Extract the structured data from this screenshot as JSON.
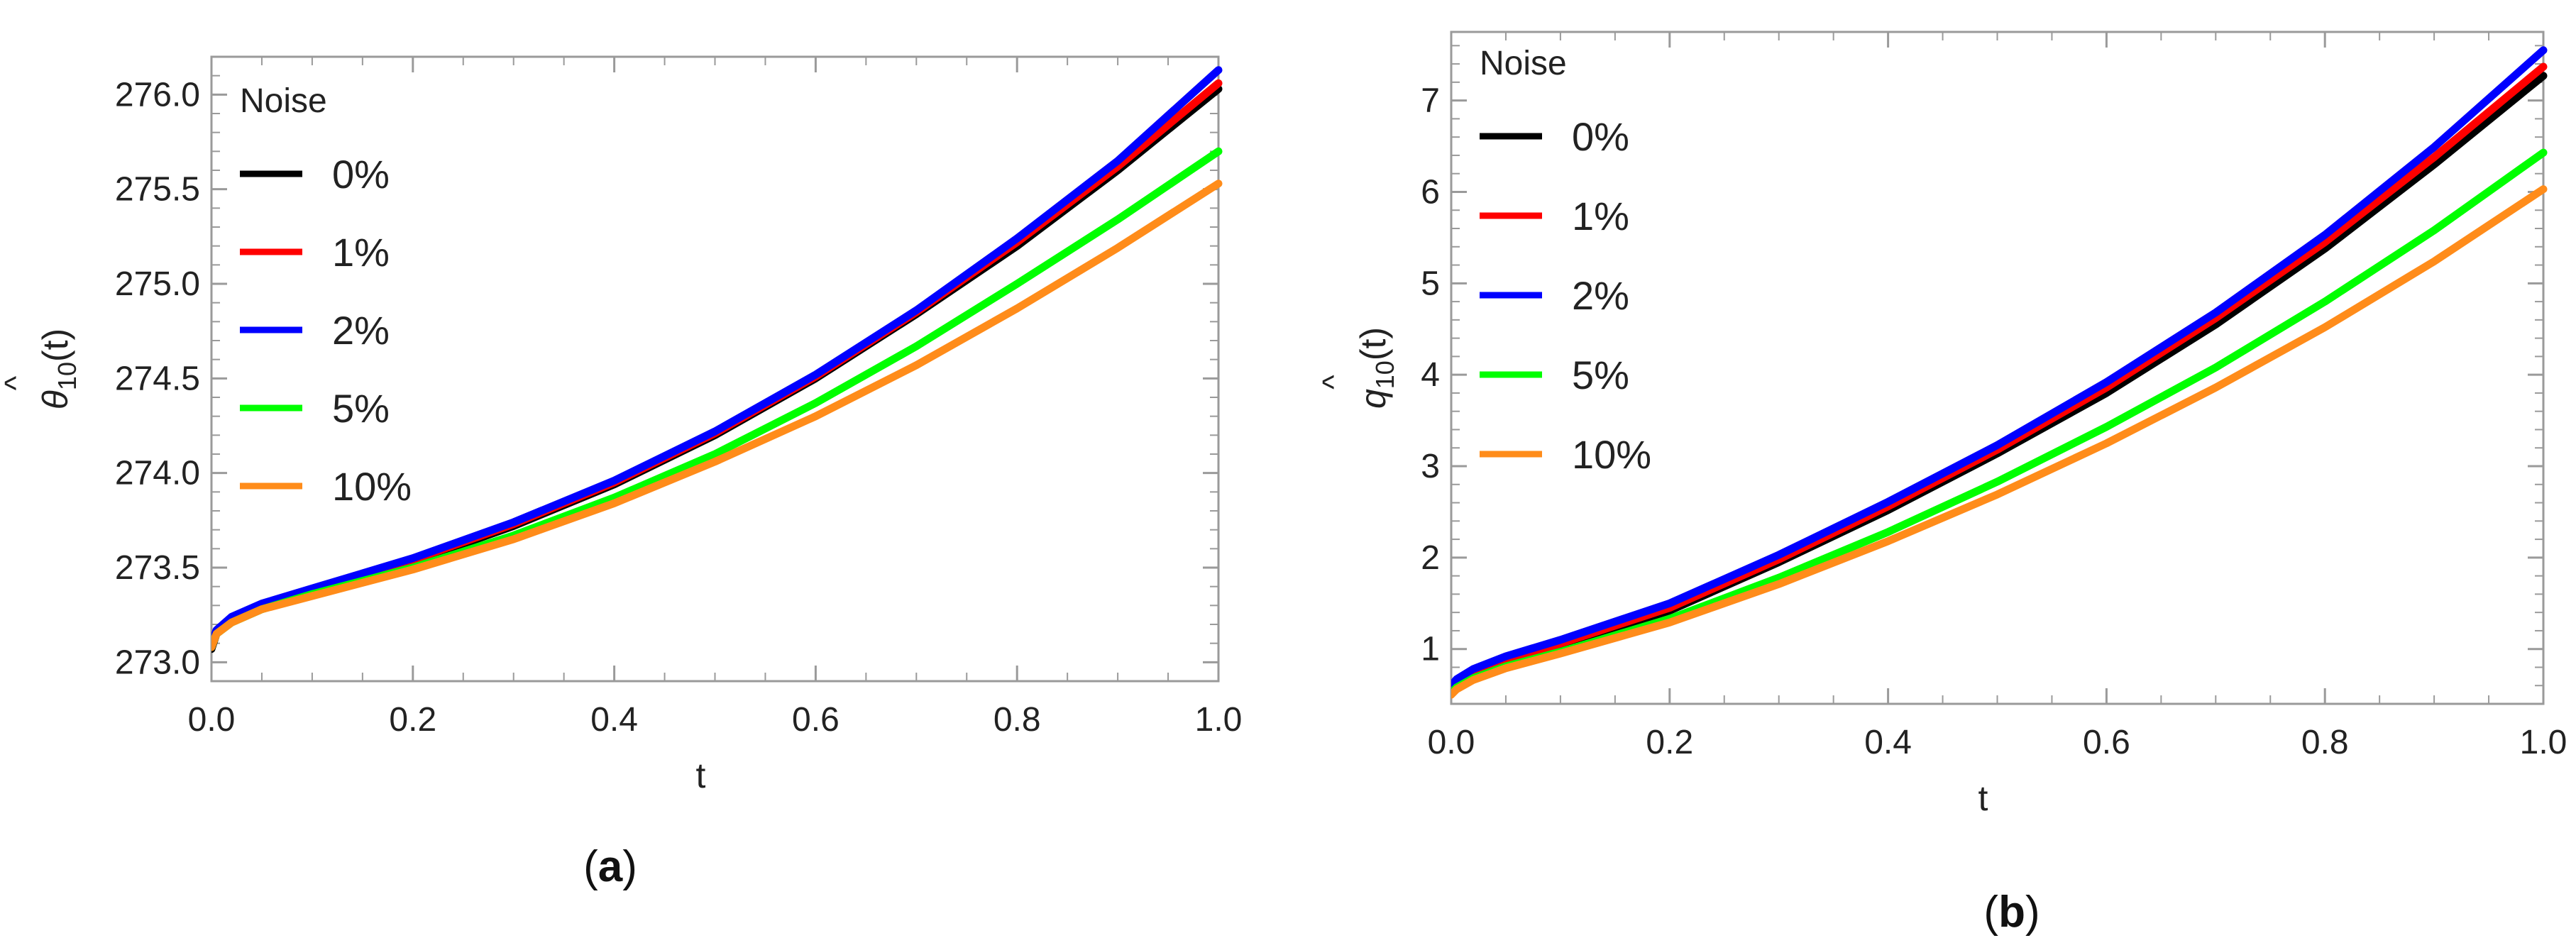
{
  "figure": {
    "legend_title": "Noise",
    "colors": {
      "0%": "#000000",
      "1%": "#ff0000",
      "2%": "#0000ff",
      "5%": "#00ff00",
      "10%": "#ff8c1a"
    }
  },
  "chart_data": [
    {
      "type": "line",
      "panel_label": "(a)",
      "caption_letter": "a",
      "xlabel": "t",
      "ylabel": "θ̂10(t)",
      "ylabel_symbol": "θ",
      "ylabel_subscript": "10",
      "ylabel_suffix": "(t)",
      "xlim": [
        0.0,
        1.0
      ],
      "ylim": [
        272.9,
        276.2
      ],
      "xticks": [
        0.0,
        0.2,
        0.4,
        0.6,
        0.8,
        1.0
      ],
      "xtick_labels": [
        "0.0",
        "0.2",
        "0.4",
        "0.6",
        "0.8",
        "1.0"
      ],
      "yticks": [
        273.0,
        273.5,
        274.0,
        274.5,
        275.0,
        275.5,
        276.0
      ],
      "ytick_labels": [
        "273.0",
        "273.5",
        "274.0",
        "274.5",
        "275.0",
        "275.5",
        "276.0"
      ],
      "legend_title": "Noise",
      "legend_position": "top-left",
      "x": [
        0.0,
        0.005,
        0.02,
        0.05,
        0.1,
        0.2,
        0.3,
        0.4,
        0.5,
        0.6,
        0.7,
        0.8,
        0.9,
        1.0
      ],
      "series": [
        {
          "name": "0%",
          "values": [
            273.07,
            273.15,
            273.22,
            273.3,
            273.38,
            273.53,
            273.72,
            273.94,
            274.2,
            274.5,
            274.84,
            275.2,
            275.6,
            276.03
          ]
        },
        {
          "name": "1%",
          "values": [
            273.08,
            273.15,
            273.22,
            273.3,
            273.38,
            273.54,
            273.73,
            273.95,
            274.21,
            274.51,
            274.85,
            275.22,
            275.62,
            276.06
          ]
        },
        {
          "name": "2%",
          "values": [
            273.1,
            273.17,
            273.24,
            273.31,
            273.39,
            273.55,
            273.74,
            273.96,
            274.22,
            274.52,
            274.86,
            275.24,
            275.65,
            276.13
          ]
        },
        {
          "name": "5%",
          "values": [
            273.08,
            273.15,
            273.21,
            273.28,
            273.36,
            273.5,
            273.67,
            273.87,
            274.1,
            274.37,
            274.67,
            275.0,
            275.34,
            275.7
          ]
        },
        {
          "name": "10%",
          "values": [
            273.08,
            273.15,
            273.21,
            273.28,
            273.35,
            273.49,
            273.65,
            273.84,
            274.06,
            274.3,
            274.57,
            274.87,
            275.19,
            275.53
          ]
        }
      ]
    },
    {
      "type": "line",
      "panel_label": "(b)",
      "caption_letter": "b",
      "xlabel": "t",
      "ylabel": "q̂10(t)",
      "ylabel_symbol": "q",
      "ylabel_subscript": "10",
      "ylabel_suffix": "(t)",
      "xlim": [
        0.0,
        1.0
      ],
      "ylim": [
        0.4,
        7.75
      ],
      "xticks": [
        0.0,
        0.2,
        0.4,
        0.6,
        0.8,
        1.0
      ],
      "xtick_labels": [
        "0.0",
        "0.2",
        "0.4",
        "0.6",
        "0.8",
        "1.0"
      ],
      "yticks": [
        1,
        2,
        3,
        4,
        5,
        6,
        7
      ],
      "ytick_labels": [
        "1",
        "2",
        "3",
        "4",
        "5",
        "6",
        "7"
      ],
      "legend_title": "Noise",
      "legend_position": "top-left",
      "x": [
        0.0,
        0.005,
        0.02,
        0.05,
        0.1,
        0.2,
        0.3,
        0.4,
        0.5,
        0.6,
        0.7,
        0.8,
        0.9,
        1.0
      ],
      "series": [
        {
          "name": "0%",
          "values": [
            0.55,
            0.62,
            0.73,
            0.87,
            1.04,
            1.42,
            1.95,
            2.52,
            3.14,
            3.8,
            4.55,
            5.38,
            6.3,
            7.27
          ]
        },
        {
          "name": "1%",
          "values": [
            0.56,
            0.63,
            0.74,
            0.88,
            1.06,
            1.45,
            1.98,
            2.56,
            3.18,
            3.86,
            4.62,
            5.45,
            6.38,
            7.37
          ]
        },
        {
          "name": "2%",
          "values": [
            0.6,
            0.67,
            0.78,
            0.92,
            1.1,
            1.5,
            2.03,
            2.61,
            3.23,
            3.92,
            4.68,
            5.53,
            6.49,
            7.55
          ]
        },
        {
          "name": "5%",
          "values": [
            0.52,
            0.58,
            0.68,
            0.81,
            0.97,
            1.33,
            1.78,
            2.28,
            2.83,
            3.43,
            4.08,
            4.8,
            5.58,
            6.43
          ]
        },
        {
          "name": "10%",
          "values": [
            0.5,
            0.56,
            0.66,
            0.79,
            0.95,
            1.29,
            1.71,
            2.18,
            2.69,
            3.25,
            3.86,
            4.52,
            5.24,
            6.03
          ]
        }
      ]
    }
  ]
}
